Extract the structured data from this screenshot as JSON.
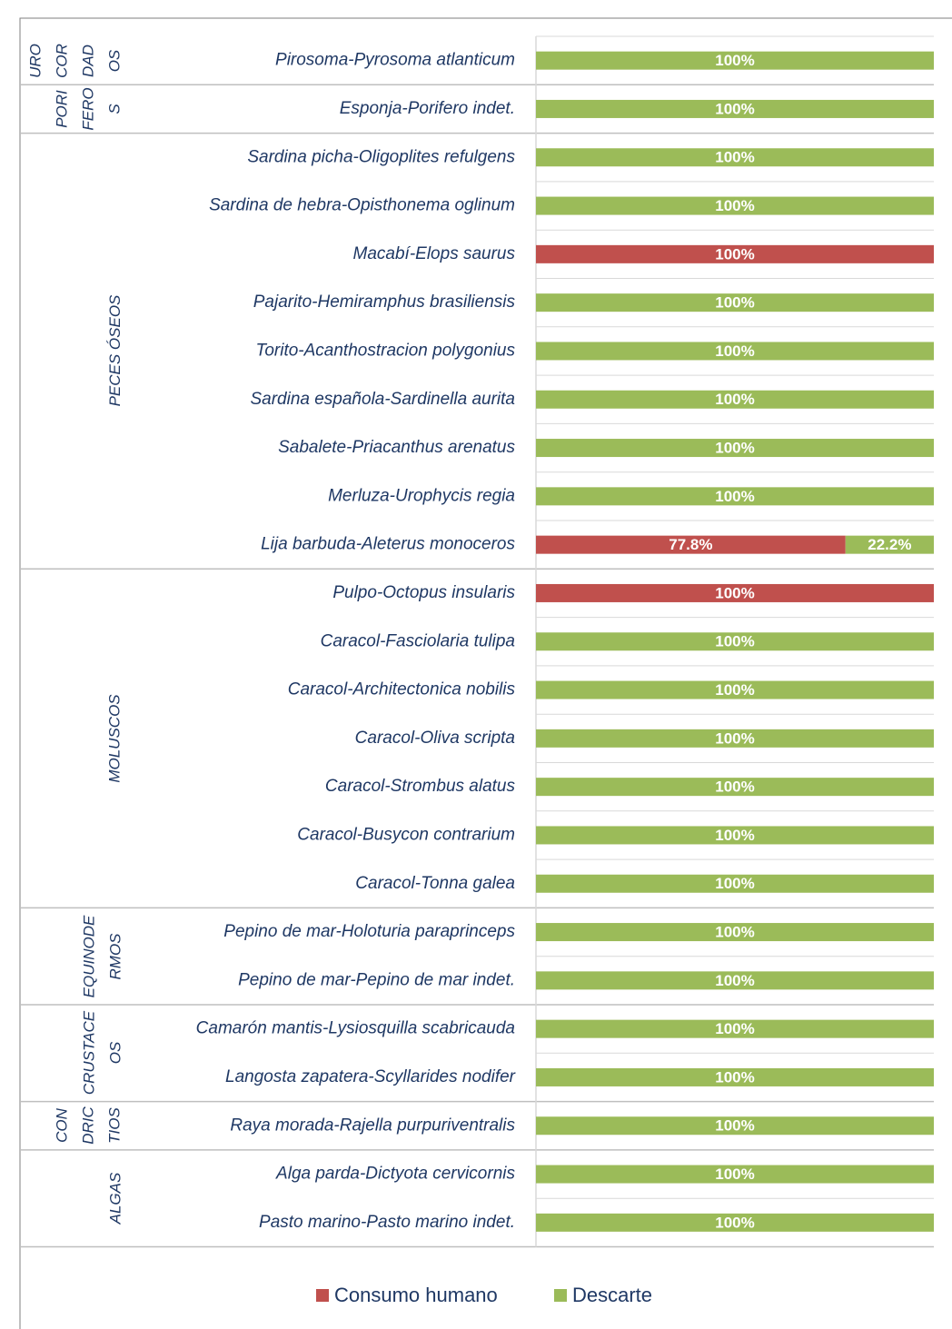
{
  "chart_data": {
    "type": "stacked_barh",
    "groups": [
      {
        "label": "UROCORDADOS",
        "categories": [
          "Pirosoma-Pyrosoma atlanticum"
        ]
      },
      {
        "label": "PORIFEROS",
        "categories": [
          "Esponja-Porifero indet."
        ]
      },
      {
        "label": "PECES ÓSEOS",
        "categories": [
          "Sardina picha-Oligoplites refulgens",
          "Sardina de hebra-Opisthonema oglinum",
          "Macabí-Elops saurus",
          "Pajarito-Hemiramphus brasiliensis",
          "Torito-Acanthostracion polygonius",
          "Sardina española-Sardinella aurita",
          "Sabalete-Priacanthus arenatus",
          "Merluza-Urophycis regia",
          "Lija barbuda-Aleterus monoceros"
        ]
      },
      {
        "label": "MOLUSCOS",
        "categories": [
          "Pulpo-Octopus insularis",
          "Caracol-Fasciolaria tulipa",
          "Caracol-Architectonica nobilis",
          "Caracol-Oliva scripta",
          "Caracol-Strombus alatus",
          "Caracol-Busycon contrarium",
          "Caracol-Tonna galea"
        ]
      },
      {
        "label": "EQUINODERMOS",
        "categories": [
          "Pepino de mar-Holoturia paraprinceps",
          "Pepino de mar-Pepino de mar indet."
        ]
      },
      {
        "label": "CRUSTACEOS",
        "categories": [
          "Camarón mantis-Lysiosquilla scabricauda",
          "Langosta zapatera-Scyllarides nodifer"
        ]
      },
      {
        "label": "CONDRICTIOS",
        "categories": [
          "Raya morada-Rajella purpuriventralis"
        ]
      },
      {
        "label": "ALGAS",
        "categories": [
          "Alga parda-Dictyota cervicornis",
          "Pasto marino-Pasto marino indet."
        ]
      }
    ],
    "series": [
      {
        "name": "Consumo humano",
        "color": "#c0504d",
        "values": [
          0,
          0,
          0,
          0,
          100,
          0,
          0,
          0,
          0,
          0,
          77.8,
          100,
          0,
          0,
          0,
          0,
          0,
          0,
          0,
          0,
          0,
          0,
          0,
          0,
          0
        ],
        "value_labels": [
          null,
          null,
          null,
          null,
          "100%",
          null,
          null,
          null,
          null,
          null,
          "77.8%",
          "100%",
          null,
          null,
          null,
          null,
          null,
          null,
          null,
          null,
          null,
          null,
          null,
          null,
          null
        ]
      },
      {
        "name": "Descarte",
        "color": "#9bbb59",
        "values": [
          100,
          100,
          100,
          100,
          0,
          100,
          100,
          100,
          100,
          100,
          22.2,
          0,
          100,
          100,
          100,
          100,
          100,
          100,
          100,
          100,
          100,
          100,
          100,
          100,
          100
        ],
        "value_labels": [
          "100%",
          "100%",
          "100%",
          "100%",
          null,
          "100%",
          "100%",
          "100%",
          "100%",
          "100%",
          "22.2%",
          null,
          "100%",
          "100%",
          "100%",
          "100%",
          "100%",
          "100%",
          "100%",
          "100%",
          "100%",
          "100%",
          "100%",
          "100%",
          "100%"
        ]
      }
    ],
    "xlim": [
      0,
      100
    ],
    "legend": "bottom"
  }
}
